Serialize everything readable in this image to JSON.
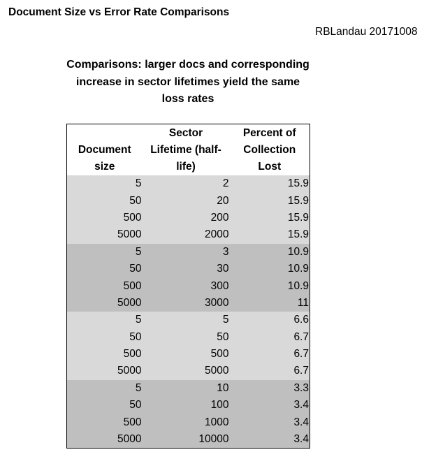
{
  "header": {
    "title": "Document Size vs Error Rate Comparisons",
    "author": "RBLandau 20171008"
  },
  "subtitle_lines": [
    "Comparisons: larger docs and corresponding",
    "increase in sector lifetimes yield the same",
    "loss rates"
  ],
  "table": {
    "headers": [
      [
        "Document",
        "size"
      ],
      [
        "Sector",
        "Lifetime (half-",
        "life)"
      ],
      [
        "Percent of",
        "Collection",
        "Lost"
      ]
    ],
    "groups": [
      {
        "shade": "light",
        "rows": [
          [
            "5",
            "2",
            "15.9"
          ],
          [
            "50",
            "20",
            "15.9"
          ],
          [
            "500",
            "200",
            "15.9"
          ],
          [
            "5000",
            "2000",
            "15.9"
          ]
        ]
      },
      {
        "shade": "dark",
        "rows": [
          [
            "5",
            "3",
            "10.9"
          ],
          [
            "50",
            "30",
            "10.9"
          ],
          [
            "500",
            "300",
            "10.9"
          ],
          [
            "5000",
            "3000",
            "11"
          ]
        ]
      },
      {
        "shade": "light",
        "rows": [
          [
            "5",
            "5",
            "6.6"
          ],
          [
            "50",
            "50",
            "6.7"
          ],
          [
            "500",
            "500",
            "6.7"
          ],
          [
            "5000",
            "5000",
            "6.7"
          ]
        ]
      },
      {
        "shade": "dark",
        "rows": [
          [
            "5",
            "10",
            "3.3"
          ],
          [
            "50",
            "100",
            "3.4"
          ],
          [
            "500",
            "1000",
            "3.4"
          ],
          [
            "5000",
            "10000",
            "3.4"
          ]
        ]
      }
    ]
  },
  "colors": {
    "light_group": "#d9d9d9",
    "dark_group": "#bfbfbf"
  }
}
